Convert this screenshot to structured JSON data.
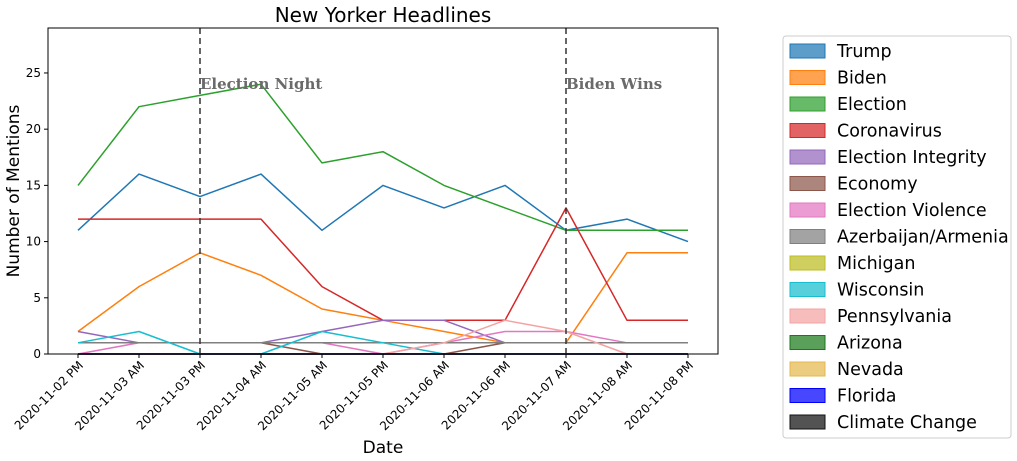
{
  "chart_data": {
    "type": "line",
    "title": "New Yorker Headlines",
    "xlabel": "Date",
    "ylabel": "Number of Mentions",
    "ylim": [
      0,
      29
    ],
    "yticks": [
      0,
      5,
      10,
      15,
      20,
      25
    ],
    "categories": [
      "2020-11-02 PM",
      "2020-11-03 AM",
      "2020-11-03 PM",
      "2020-11-04 AM",
      "2020-11-05 AM",
      "2020-11-05 PM",
      "2020-11-06 AM",
      "2020-11-06 PM",
      "2020-11-07 AM",
      "2020-11-08 AM",
      "2020-11-08 PM"
    ],
    "grid": false,
    "legend_position": "outside-right",
    "annotations": [
      {
        "text": "Election Night",
        "x_index": 2,
        "y": 24
      },
      {
        "text": "Biden Wins",
        "x_index": 8,
        "y": 24
      }
    ],
    "series": [
      {
        "name": "Trump",
        "color": "#1f77b4",
        "values": [
          11,
          16,
          14,
          16,
          11,
          15,
          13,
          15,
          11,
          12,
          10
        ]
      },
      {
        "name": "Biden",
        "color": "#ff7f0e",
        "values": [
          2,
          6,
          9,
          7,
          4,
          3,
          2,
          1,
          1,
          9,
          9
        ]
      },
      {
        "name": "Election",
        "color": "#2ca02c",
        "values": [
          15,
          22,
          23,
          24,
          17,
          18,
          15,
          13,
          11,
          11,
          11
        ]
      },
      {
        "name": "Coronavirus",
        "color": "#d62728",
        "values": [
          12,
          12,
          12,
          12,
          6,
          3,
          3,
          3,
          13,
          3,
          3
        ]
      },
      {
        "name": "Election Integrity",
        "color": "#9467bd",
        "values": [
          2,
          1,
          1,
          1,
          2,
          3,
          3,
          1,
          1,
          1,
          1
        ]
      },
      {
        "name": "Economy",
        "color": "#8c564b",
        "values": [
          1,
          1,
          1,
          1,
          0,
          0,
          0,
          1,
          1,
          1,
          1
        ]
      },
      {
        "name": "Election Violence",
        "color": "#e377c2",
        "values": [
          0,
          1,
          1,
          1,
          1,
          0,
          1,
          2,
          2,
          1,
          1
        ]
      },
      {
        "name": "Azerbaijan/Armenia",
        "color": "#7f7f7f",
        "values": [
          1,
          1,
          1,
          1,
          1,
          1,
          1,
          1,
          1,
          1,
          1
        ]
      },
      {
        "name": "Michigan",
        "color": "#bcbd22",
        "values": [
          0,
          0,
          0,
          0,
          0,
          0,
          0,
          0,
          0,
          0,
          0
        ]
      },
      {
        "name": "Wisconsin",
        "color": "#17becf",
        "values": [
          1,
          2,
          0,
          0,
          2,
          1,
          0,
          0,
          0,
          0,
          0
        ]
      },
      {
        "name": "Pennsylvania",
        "color": "#f4a3a3",
        "values": [
          0,
          0,
          0,
          0,
          0,
          0,
          1,
          3,
          2,
          0,
          0
        ]
      },
      {
        "name": "Arizona",
        "color": "#1a7a1a",
        "values": [
          0,
          0,
          0,
          0,
          0,
          0,
          0,
          0,
          0,
          0,
          0
        ]
      },
      {
        "name": "Nevada",
        "color": "#e5b84d",
        "values": [
          0,
          0,
          0,
          0,
          0,
          0,
          0,
          0,
          0,
          0,
          0
        ]
      },
      {
        "name": "Florida",
        "color": "#0000ff",
        "values": [
          0,
          0,
          0,
          0,
          0,
          0,
          0,
          0,
          0,
          0,
          0
        ]
      },
      {
        "name": "Climate Change",
        "color": "#111111",
        "values": [
          0,
          0,
          0,
          0,
          0,
          0,
          0,
          0,
          0,
          0,
          0
        ]
      }
    ]
  }
}
